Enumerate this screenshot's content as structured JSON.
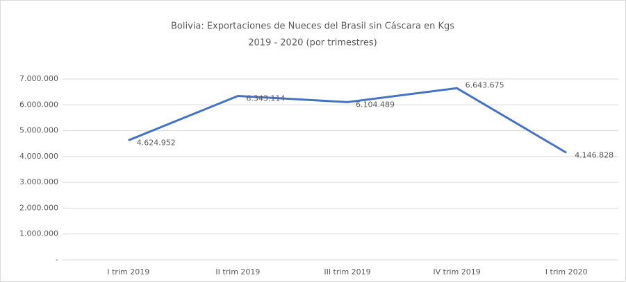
{
  "chart_data": {
    "type": "line",
    "title": "Bolivia: Exportaciones de Nueces del Brasil sin Cáscara en Kgs",
    "subtitle": "2019 - 2020 (por trimestres)",
    "categories": [
      "I trim 2019",
      "II trim 2019",
      "III trim 2019",
      "IV trim 2019",
      "I trim 2020"
    ],
    "values": [
      4624952,
      6343114,
      6104489,
      6643675,
      4146828
    ],
    "value_labels": [
      "4.624.952",
      "6.343.114",
      "6.104.489",
      "6.643.675",
      "4.146.828"
    ],
    "color": "#4472c4",
    "ylim": [
      0,
      7000000
    ],
    "yticks": [
      {
        "value": 0,
        "label": "-"
      },
      {
        "value": 1000000,
        "label": "1.000.000"
      },
      {
        "value": 2000000,
        "label": "2.000.000"
      },
      {
        "value": 3000000,
        "label": "3.000.000"
      },
      {
        "value": 4000000,
        "label": "4.000.000"
      },
      {
        "value": 5000000,
        "label": "5.000.000"
      },
      {
        "value": 6000000,
        "label": "6.000.000"
      },
      {
        "value": 7000000,
        "label": "7.000.000"
      }
    ],
    "grid": true
  }
}
